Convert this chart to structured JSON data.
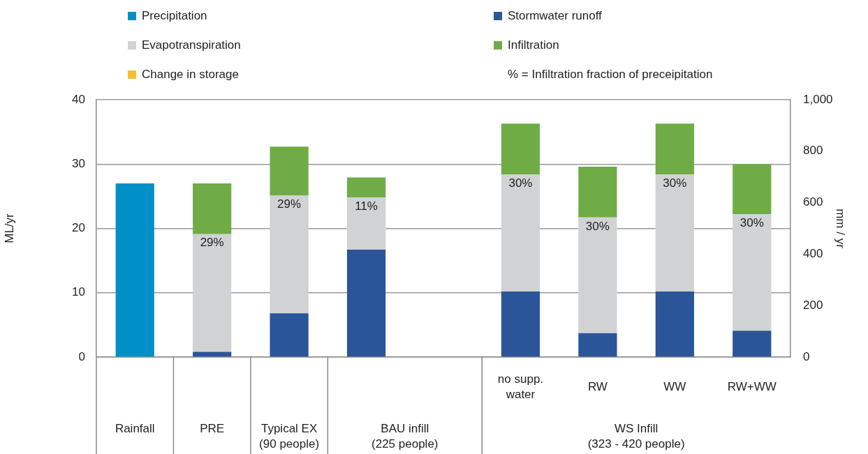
{
  "chart_data": {
    "type": "bar",
    "stacked": true,
    "categories": [
      null,
      null,
      null,
      null,
      null,
      "no supp.\nwater",
      "RW",
      "WW",
      "RW+WW"
    ],
    "series": [
      {
        "name": "Precipitation",
        "color": "#0090c8",
        "values": [
          27,
          null,
          null,
          null,
          null,
          null,
          null,
          null,
          null
        ]
      },
      {
        "name": "Stormwater runoff",
        "color": "#2a5599",
        "values": [
          null,
          0.8,
          6.8,
          16.7,
          null,
          10.2,
          3.7,
          10.2,
          4.1
        ]
      },
      {
        "name": "Evapotranspiration",
        "color": "#d1d2d4",
        "values": [
          null,
          18.3,
          18.3,
          8.1,
          null,
          18.2,
          18.0,
          18.2,
          18.1
        ]
      },
      {
        "name": "Infiltration",
        "color": "#6fac46",
        "values": [
          null,
          7.9,
          7.6,
          3.1,
          null,
          7.9,
          7.9,
          7.9,
          7.8
        ]
      },
      {
        "name": "Change in storage",
        "color": "#f5c02f",
        "values": [
          null,
          null,
          null,
          null,
          null,
          null,
          null,
          null,
          null
        ]
      }
    ],
    "ylabel": "ML/yr",
    "y2label": "mm / yr",
    "ylim": [
      0,
      40
    ],
    "yticks": [
      0,
      10,
      20,
      30,
      40
    ],
    "y2lim": [
      0,
      1000
    ],
    "y2ticks": [
      0,
      200,
      400,
      600,
      800,
      {
        "value": 1000,
        "label": "1,000"
      }
    ],
    "grid": "y",
    "legend": "top",
    "annotations": [
      "% = Infiltration fraction of preceipitation",
      "Rainfall",
      "PRE",
      "Typical EX\n(90 people)",
      "BAU infill\n(225 people)",
      "WS Infill\n(323 - 420 people)",
      {
        "text": "29%",
        "y": 19.1
      },
      {
        "text": "29%",
        "y": 25.1
      },
      {
        "text": "11%",
        "y": 24.8
      },
      {
        "text": "30%",
        "x": "no supp.\nwater",
        "y": 28.4
      },
      {
        "text": "30%",
        "x": "RW",
        "y": 21.7
      },
      {
        "text": "30%",
        "x": "WW",
        "y": 28.4
      },
      {
        "text": "30%",
        "x": "RW+WW",
        "y": 22.2
      }
    ]
  }
}
